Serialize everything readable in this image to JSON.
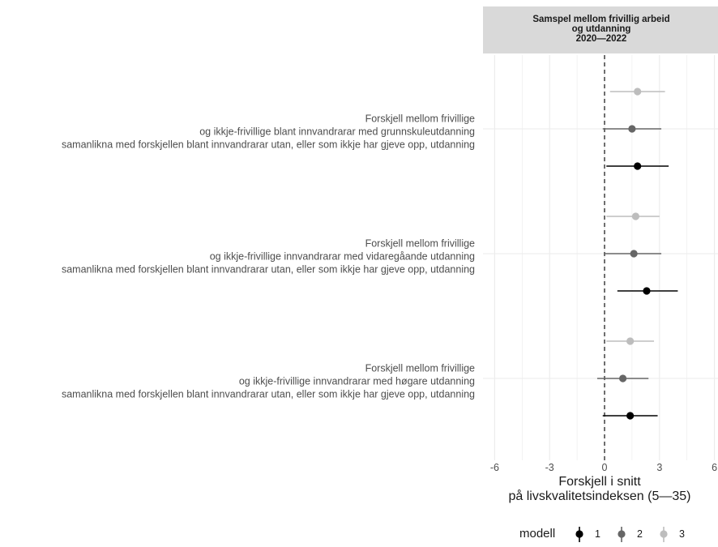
{
  "chart_data": {
    "type": "scatter",
    "subtype": "coefficient-plot-with-intervals",
    "strip_title": [
      "Samspel mellom frivillig arbeid",
      "og utdanning",
      "2020—2022"
    ],
    "xlabel": [
      "Forskjell i snitt",
      "på livskvalitetsindeksen (5—35)"
    ],
    "xlim": [
      -6,
      6
    ],
    "xticks": [
      "-6",
      "-3",
      "0",
      "3",
      "6"
    ],
    "reference_line": 0,
    "grid": true,
    "legend": {
      "title": "modell",
      "position": "bottom",
      "entries": [
        "1",
        "2",
        "3"
      ]
    },
    "colors": {
      "1": "#000000",
      "2": "#666666",
      "3": "#bdbdbd",
      "strip": "#d9d9d9",
      "grid": "#ebebeb"
    },
    "categories": [
      [
        "Forskjell mellom frivillige",
        "og ikkje-frivillige blant innvandrarar med grunnskuleutdanning",
        "samanlikna med forskjellen blant innvandrarar utan, eller som ikkje har gjeve opp, utdanning"
      ],
      [
        "Forskjell mellom frivillige",
        "og ikkje-frivillige innvandrarar med vidaregåande utdanning",
        "samanlikna med forskjellen blant innvandrarar utan, eller som ikkje har gjeve opp, utdanning"
      ],
      [
        "Forskjell mellom frivillige",
        "og ikkje-frivillige innvandrarar med høgare utdanning",
        "samanlikna med forskjellen blant innvandrarar utan, eller som ikkje har gjeve opp, utdanning"
      ]
    ],
    "series": [
      {
        "name": "1",
        "estimate": [
          1.8,
          2.3,
          1.4
        ],
        "lower": [
          0.1,
          0.7,
          -0.1
        ],
        "upper": [
          3.5,
          4.0,
          2.9
        ]
      },
      {
        "name": "2",
        "estimate": [
          1.5,
          1.6,
          1.0
        ],
        "lower": [
          -0.1,
          0.0,
          -0.4
        ],
        "upper": [
          3.1,
          3.1,
          2.4
        ]
      },
      {
        "name": "3",
        "estimate": [
          1.8,
          1.7,
          1.4
        ],
        "lower": [
          0.3,
          0.1,
          0.1
        ],
        "upper": [
          3.3,
          3.0,
          2.7
        ]
      }
    ]
  }
}
